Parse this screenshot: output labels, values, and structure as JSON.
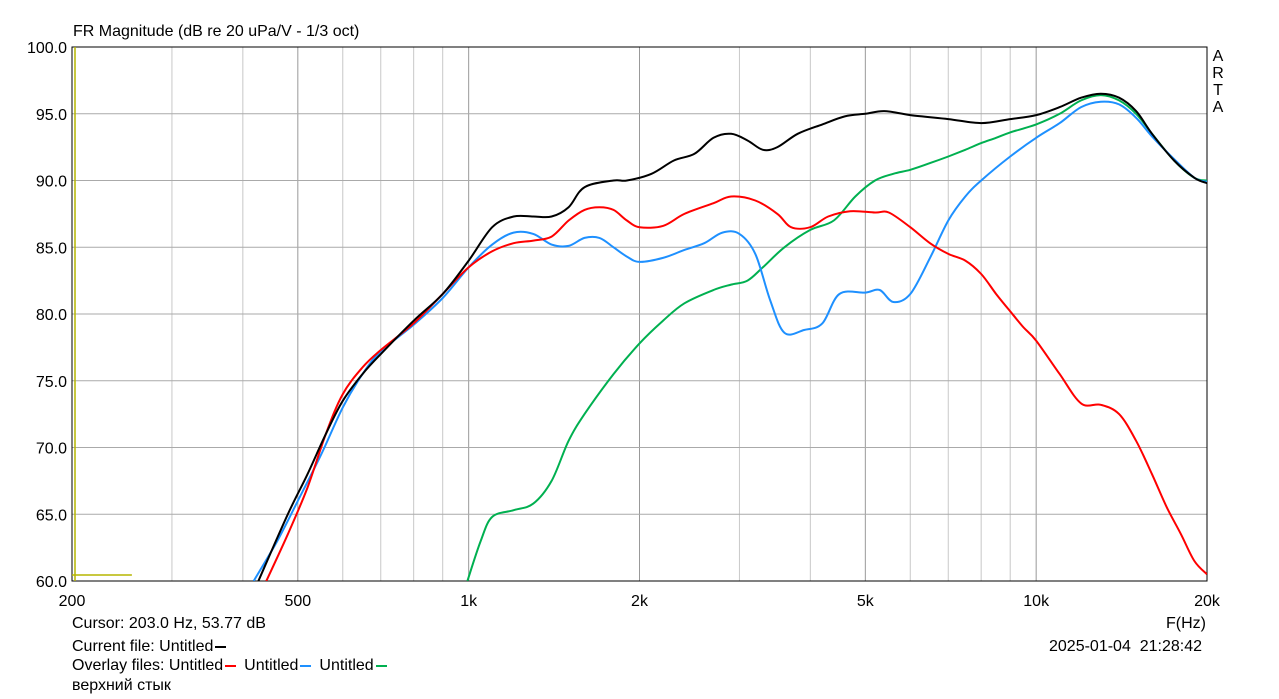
{
  "chart_data": {
    "type": "line",
    "title": "FR Magnitude (dB re 20 uPa/V - 1/3 oct)",
    "xlabel": "F(Hz)",
    "ylabel": "",
    "x_scale": "log",
    "xlim": [
      200,
      20000
    ],
    "ylim": [
      60,
      100
    ],
    "x_ticks": [
      200,
      500,
      1000,
      2000,
      5000,
      10000,
      20000
    ],
    "x_tick_labels": [
      "200",
      "500",
      "1k",
      "2k",
      "5k",
      "10k",
      "20k"
    ],
    "y_ticks": [
      60,
      65,
      70,
      75,
      80,
      85,
      90,
      95,
      100
    ],
    "y_tick_labels": [
      "60.0",
      "65.0",
      "70.0",
      "75.0",
      "80.0",
      "85.0",
      "90.0",
      "95.0",
      "100.0"
    ],
    "grid": true,
    "watermark": "ARTA",
    "series": [
      {
        "color": "#000000",
        "points": [
          [
            426,
            60
          ],
          [
            480,
            65
          ],
          [
            520,
            68
          ],
          [
            560,
            71
          ],
          [
            600,
            73.5
          ],
          [
            650,
            75.5
          ],
          [
            700,
            77
          ],
          [
            800,
            79.5
          ],
          [
            900,
            81.5
          ],
          [
            1000,
            84
          ],
          [
            1100,
            86.5
          ],
          [
            1200,
            87.3
          ],
          [
            1300,
            87.3
          ],
          [
            1400,
            87.3
          ],
          [
            1500,
            88
          ],
          [
            1600,
            89.5
          ],
          [
            1800,
            90
          ],
          [
            1900,
            90
          ],
          [
            2100,
            90.5
          ],
          [
            2300,
            91.5
          ],
          [
            2500,
            92
          ],
          [
            2700,
            93.2
          ],
          [
            2900,
            93.5
          ],
          [
            3100,
            93
          ],
          [
            3300,
            92.3
          ],
          [
            3500,
            92.5
          ],
          [
            3800,
            93.5
          ],
          [
            4200,
            94.2
          ],
          [
            4600,
            94.8
          ],
          [
            5000,
            95
          ],
          [
            5400,
            95.2
          ],
          [
            6000,
            94.9
          ],
          [
            7000,
            94.6
          ],
          [
            8000,
            94.3
          ],
          [
            9000,
            94.6
          ],
          [
            10000,
            94.9
          ],
          [
            11000,
            95.5
          ],
          [
            12000,
            96.2
          ],
          [
            13000,
            96.5
          ],
          [
            14000,
            96.2
          ],
          [
            15000,
            95.2
          ],
          [
            16000,
            93.5
          ],
          [
            17500,
            91.5
          ],
          [
            19000,
            90.2
          ],
          [
            20000,
            89.8
          ]
        ]
      },
      {
        "color": "#ff0000",
        "points": [
          [
            440,
            60
          ],
          [
            480,
            63.5
          ],
          [
            520,
            67
          ],
          [
            560,
            71
          ],
          [
            600,
            74
          ],
          [
            650,
            76
          ],
          [
            700,
            77.3
          ],
          [
            800,
            79.3
          ],
          [
            900,
            81.5
          ],
          [
            1000,
            83.5
          ],
          [
            1100,
            84.7
          ],
          [
            1200,
            85.3
          ],
          [
            1300,
            85.5
          ],
          [
            1400,
            85.8
          ],
          [
            1500,
            87
          ],
          [
            1600,
            87.8
          ],
          [
            1700,
            88
          ],
          [
            1800,
            87.8
          ],
          [
            1900,
            87
          ],
          [
            2000,
            86.5
          ],
          [
            2200,
            86.6
          ],
          [
            2400,
            87.5
          ],
          [
            2700,
            88.3
          ],
          [
            2900,
            88.8
          ],
          [
            3200,
            88.5
          ],
          [
            3500,
            87.5
          ],
          [
            3700,
            86.5
          ],
          [
            4000,
            86.5
          ],
          [
            4300,
            87.3
          ],
          [
            4700,
            87.7
          ],
          [
            5200,
            87.6
          ],
          [
            5500,
            87.6
          ],
          [
            6000,
            86.5
          ],
          [
            6500,
            85.3
          ],
          [
            7000,
            84.5
          ],
          [
            7500,
            84
          ],
          [
            8000,
            83
          ],
          [
            8500,
            81.5
          ],
          [
            9000,
            80.2
          ],
          [
            9500,
            79
          ],
          [
            10000,
            78
          ],
          [
            11000,
            75.5
          ],
          [
            12000,
            73.3
          ],
          [
            13000,
            73.2
          ],
          [
            14000,
            72.5
          ],
          [
            15000,
            70.5
          ],
          [
            16000,
            68
          ],
          [
            17000,
            65.5
          ],
          [
            18000,
            63.5
          ],
          [
            19000,
            61.5
          ],
          [
            20000,
            60.5
          ]
        ]
      },
      {
        "color": "#1e90ff",
        "points": [
          [
            418,
            60
          ],
          [
            460,
            63
          ],
          [
            500,
            66
          ],
          [
            550,
            69.5
          ],
          [
            600,
            73
          ],
          [
            650,
            75.5
          ],
          [
            700,
            77.2
          ],
          [
            800,
            79.2
          ],
          [
            900,
            81.2
          ],
          [
            1000,
            83.5
          ],
          [
            1100,
            85.2
          ],
          [
            1200,
            86.1
          ],
          [
            1300,
            86
          ],
          [
            1400,
            85.2
          ],
          [
            1500,
            85.1
          ],
          [
            1600,
            85.7
          ],
          [
            1700,
            85.7
          ],
          [
            1800,
            85
          ],
          [
            1900,
            84.3
          ],
          [
            2000,
            83.9
          ],
          [
            2200,
            84.2
          ],
          [
            2400,
            84.8
          ],
          [
            2600,
            85.3
          ],
          [
            2800,
            86.1
          ],
          [
            3000,
            86
          ],
          [
            3200,
            84.5
          ],
          [
            3400,
            81
          ],
          [
            3600,
            78.6
          ],
          [
            3900,
            78.8
          ],
          [
            4200,
            79.3
          ],
          [
            4500,
            81.5
          ],
          [
            5000,
            81.6
          ],
          [
            5300,
            81.8
          ],
          [
            5600,
            80.9
          ],
          [
            6000,
            81.5
          ],
          [
            6500,
            84.2
          ],
          [
            7000,
            87
          ],
          [
            7500,
            88.8
          ],
          [
            8000,
            90
          ],
          [
            9000,
            91.8
          ],
          [
            10000,
            93.2
          ],
          [
            11000,
            94.3
          ],
          [
            12000,
            95.5
          ],
          [
            13000,
            95.9
          ],
          [
            14000,
            95.7
          ],
          [
            15000,
            94.7
          ],
          [
            16000,
            93.3
          ],
          [
            17500,
            91.6
          ],
          [
            19000,
            90.2
          ],
          [
            20000,
            89.9
          ]
        ]
      },
      {
        "color": "#00b050",
        "points": [
          [
            995,
            60
          ],
          [
            1050,
            63
          ],
          [
            1100,
            64.8
          ],
          [
            1200,
            65.3
          ],
          [
            1300,
            65.8
          ],
          [
            1400,
            67.5
          ],
          [
            1500,
            70.5
          ],
          [
            1600,
            72.5
          ],
          [
            1800,
            75.5
          ],
          [
            2000,
            77.8
          ],
          [
            2200,
            79.5
          ],
          [
            2400,
            80.8
          ],
          [
            2700,
            81.8
          ],
          [
            2900,
            82.2
          ],
          [
            3100,
            82.5
          ],
          [
            3300,
            83.5
          ],
          [
            3600,
            85
          ],
          [
            4000,
            86.3
          ],
          [
            4400,
            87
          ],
          [
            4800,
            88.8
          ],
          [
            5200,
            90
          ],
          [
            5600,
            90.5
          ],
          [
            6000,
            90.8
          ],
          [
            6500,
            91.3
          ],
          [
            7000,
            91.8
          ],
          [
            7500,
            92.3
          ],
          [
            8000,
            92.8
          ],
          [
            8500,
            93.2
          ],
          [
            9000,
            93.6
          ],
          [
            10000,
            94.2
          ],
          [
            11000,
            95
          ],
          [
            12000,
            96
          ],
          [
            13000,
            96.4
          ],
          [
            14000,
            96
          ],
          [
            15000,
            95
          ],
          [
            16000,
            93.5
          ],
          [
            17500,
            91.5
          ],
          [
            19000,
            90.2
          ],
          [
            20000,
            90
          ]
        ]
      }
    ],
    "marker": {
      "color": "#b5b500",
      "x_start": 200,
      "x_end": 255,
      "y": 60.3
    }
  },
  "cursor_text": "Cursor: 203.0 Hz, 53.77 dB",
  "current_file_text": "Current file: Untitled",
  "current_file_color": "#000000",
  "overlay": {
    "prefix": "Overlay files:",
    "files": [
      {
        "label": "Untitled",
        "color": "#ff0000"
      },
      {
        "label": "Untitled",
        "color": "#1e90ff"
      },
      {
        "label": "Untitled",
        "color": "#00b050"
      }
    ]
  },
  "note": "верхний стык",
  "date": "2025-01-04",
  "time": "21:28:42",
  "watermark_letters": [
    "A",
    "R",
    "T",
    "A"
  ]
}
